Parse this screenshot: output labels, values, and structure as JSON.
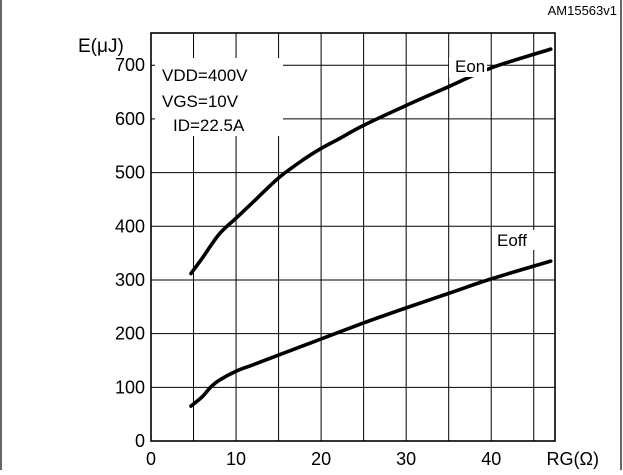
{
  "figure_id": "AM15563v1",
  "chart_data": {
    "type": "line",
    "ylabel": "E(μJ)",
    "xlabel": "RG(Ω)",
    "xlim": [
      0,
      47.5
    ],
    "ylim": [
      0,
      760
    ],
    "x_ticks": [
      0,
      10,
      20,
      30,
      40
    ],
    "y_ticks": [
      0,
      100,
      200,
      300,
      400,
      500,
      600,
      700
    ],
    "grid": true,
    "conditions": [
      "VDD=400V",
      "VGS=10V",
      "ID=22.5A"
    ],
    "series": [
      {
        "name": "Eon",
        "x": [
          4.7,
          6,
          8,
          10,
          12,
          15,
          18,
          20,
          22,
          25,
          30,
          35,
          40,
          47
        ],
        "y": [
          312,
          340,
          385,
          415,
          445,
          490,
          525,
          545,
          562,
          588,
          625,
          660,
          695,
          730
        ]
      },
      {
        "name": "Eoff",
        "x": [
          4.7,
          6,
          7,
          8,
          10,
          12,
          15,
          20,
          25,
          30,
          35,
          40,
          47
        ],
        "y": [
          65,
          82,
          100,
          113,
          130,
          142,
          160,
          190,
          220,
          248,
          275,
          302,
          335
        ]
      }
    ]
  }
}
